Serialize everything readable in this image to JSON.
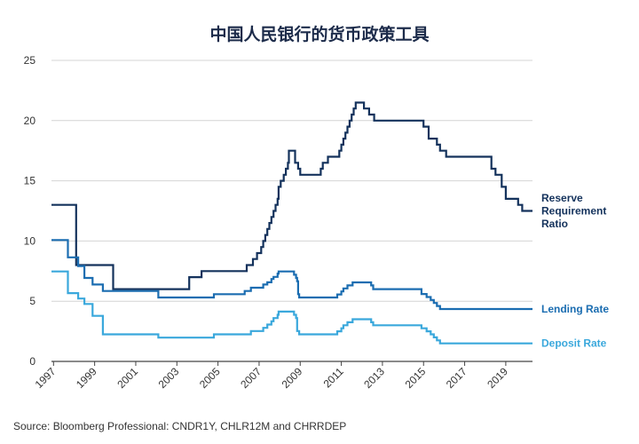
{
  "chart_data": {
    "type": "line",
    "title": "中国人民银行的货币政策工具",
    "source": "Source: Bloomberg Professional: CNDR1Y, CHLR12M and CHRRDEP",
    "xlim": [
      1996.9,
      2020.3
    ],
    "ylim": [
      0,
      25
    ],
    "yticks": [
      0,
      5,
      10,
      15,
      20,
      25
    ],
    "xtick_labels": [
      "1997",
      "1999",
      "2001",
      "2003",
      "2005",
      "2007",
      "2009",
      "2011",
      "2013",
      "2015",
      "2017",
      "2019"
    ],
    "xtick_values": [
      1997,
      1999,
      2001,
      2003,
      2005,
      2007,
      2009,
      2011,
      2013,
      2015,
      2017,
      2019
    ],
    "grid": "horizontal",
    "legend_placement": "right, at line ends",
    "series": [
      {
        "name": "Reserve Requirement Ratio",
        "color": "#14325c",
        "points": [
          [
            1996.9,
            13
          ],
          [
            1998.1,
            13
          ],
          [
            1998.1,
            8
          ],
          [
            1999.9,
            8
          ],
          [
            1999.9,
            6
          ],
          [
            2003.6,
            6
          ],
          [
            2003.6,
            7
          ],
          [
            2004.2,
            7
          ],
          [
            2004.2,
            7.5
          ],
          [
            2006.4,
            7.5
          ],
          [
            2006.4,
            8
          ],
          [
            2006.7,
            8
          ],
          [
            2006.7,
            8.5
          ],
          [
            2006.9,
            8.5
          ],
          [
            2006.9,
            9
          ],
          [
            2007.1,
            9
          ],
          [
            2007.1,
            9.5
          ],
          [
            2007.2,
            9.5
          ],
          [
            2007.2,
            10
          ],
          [
            2007.3,
            10
          ],
          [
            2007.3,
            10.5
          ],
          [
            2007.4,
            10.5
          ],
          [
            2007.4,
            11
          ],
          [
            2007.5,
            11
          ],
          [
            2007.5,
            11.5
          ],
          [
            2007.6,
            11.5
          ],
          [
            2007.6,
            12
          ],
          [
            2007.7,
            12
          ],
          [
            2007.7,
            12.5
          ],
          [
            2007.8,
            12.5
          ],
          [
            2007.8,
            13
          ],
          [
            2007.9,
            13
          ],
          [
            2007.9,
            13.5
          ],
          [
            2007.95,
            13.5
          ],
          [
            2007.95,
            14.5
          ],
          [
            2008.05,
            14.5
          ],
          [
            2008.05,
            15
          ],
          [
            2008.2,
            15
          ],
          [
            2008.2,
            15.5
          ],
          [
            2008.3,
            15.5
          ],
          [
            2008.3,
            16
          ],
          [
            2008.4,
            16
          ],
          [
            2008.4,
            16.5
          ],
          [
            2008.45,
            16.5
          ],
          [
            2008.45,
            17.5
          ],
          [
            2008.75,
            17.5
          ],
          [
            2008.75,
            16.5
          ],
          [
            2008.9,
            16.5
          ],
          [
            2008.9,
            16
          ],
          [
            2009.0,
            16
          ],
          [
            2009.0,
            15.5
          ],
          [
            2010.0,
            15.5
          ],
          [
            2010.0,
            16
          ],
          [
            2010.1,
            16
          ],
          [
            2010.1,
            16.5
          ],
          [
            2010.35,
            16.5
          ],
          [
            2010.35,
            17
          ],
          [
            2010.9,
            17
          ],
          [
            2010.9,
            17.5
          ],
          [
            2011.0,
            17.5
          ],
          [
            2011.0,
            18
          ],
          [
            2011.1,
            18
          ],
          [
            2011.1,
            18.5
          ],
          [
            2011.2,
            18.5
          ],
          [
            2011.2,
            19
          ],
          [
            2011.3,
            19
          ],
          [
            2011.3,
            19.5
          ],
          [
            2011.4,
            19.5
          ],
          [
            2011.4,
            20
          ],
          [
            2011.5,
            20
          ],
          [
            2011.5,
            20.5
          ],
          [
            2011.6,
            20.5
          ],
          [
            2011.6,
            21
          ],
          [
            2011.7,
            21
          ],
          [
            2011.7,
            21.5
          ],
          [
            2012.1,
            21.5
          ],
          [
            2012.1,
            21
          ],
          [
            2012.35,
            21
          ],
          [
            2012.35,
            20.5
          ],
          [
            2012.6,
            20.5
          ],
          [
            2012.6,
            20
          ],
          [
            2015.0,
            20
          ],
          [
            2015.0,
            19.5
          ],
          [
            2015.25,
            19.5
          ],
          [
            2015.25,
            18.5
          ],
          [
            2015.65,
            18.5
          ],
          [
            2015.65,
            18
          ],
          [
            2015.8,
            18
          ],
          [
            2015.8,
            17.5
          ],
          [
            2016.1,
            17.5
          ],
          [
            2016.1,
            17
          ],
          [
            2018.3,
            17
          ],
          [
            2018.3,
            16
          ],
          [
            2018.5,
            16
          ],
          [
            2018.5,
            15.5
          ],
          [
            2018.8,
            15.5
          ],
          [
            2018.8,
            14.5
          ],
          [
            2019.0,
            14.5
          ],
          [
            2019.0,
            13.5
          ],
          [
            2019.6,
            13.5
          ],
          [
            2019.6,
            13
          ],
          [
            2019.8,
            13
          ],
          [
            2019.8,
            12.5
          ],
          [
            2020.3,
            12.5
          ]
        ]
      },
      {
        "name": "Lending Rate",
        "color": "#1b6db1",
        "points": [
          [
            1996.9,
            10.08
          ],
          [
            1997.7,
            10.08
          ],
          [
            1997.7,
            8.64
          ],
          [
            1998.2,
            8.64
          ],
          [
            1998.2,
            7.92
          ],
          [
            1998.5,
            7.92
          ],
          [
            1998.5,
            6.93
          ],
          [
            1998.9,
            6.93
          ],
          [
            1998.9,
            6.39
          ],
          [
            1999.4,
            6.39
          ],
          [
            1999.4,
            5.85
          ],
          [
            2002.1,
            5.85
          ],
          [
            2002.1,
            5.31
          ],
          [
            2004.8,
            5.31
          ],
          [
            2004.8,
            5.58
          ],
          [
            2006.3,
            5.58
          ],
          [
            2006.3,
            5.85
          ],
          [
            2006.6,
            5.85
          ],
          [
            2006.6,
            6.12
          ],
          [
            2007.2,
            6.12
          ],
          [
            2007.2,
            6.39
          ],
          [
            2007.4,
            6.39
          ],
          [
            2007.4,
            6.57
          ],
          [
            2007.6,
            6.57
          ],
          [
            2007.6,
            6.84
          ],
          [
            2007.7,
            6.84
          ],
          [
            2007.7,
            7.02
          ],
          [
            2007.9,
            7.02
          ],
          [
            2007.9,
            7.29
          ],
          [
            2007.95,
            7.29
          ],
          [
            2007.95,
            7.47
          ],
          [
            2008.7,
            7.47
          ],
          [
            2008.7,
            7.2
          ],
          [
            2008.8,
            7.2
          ],
          [
            2008.8,
            6.93
          ],
          [
            2008.85,
            6.93
          ],
          [
            2008.85,
            6.66
          ],
          [
            2008.9,
            6.66
          ],
          [
            2008.9,
            5.58
          ],
          [
            2008.95,
            5.58
          ],
          [
            2008.95,
            5.31
          ],
          [
            2010.8,
            5.31
          ],
          [
            2010.8,
            5.56
          ],
          [
            2011.0,
            5.56
          ],
          [
            2011.0,
            5.81
          ],
          [
            2011.1,
            5.81
          ],
          [
            2011.1,
            6.06
          ],
          [
            2011.3,
            6.06
          ],
          [
            2011.3,
            6.31
          ],
          [
            2011.55,
            6.31
          ],
          [
            2011.55,
            6.56
          ],
          [
            2012.45,
            6.56
          ],
          [
            2012.45,
            6.31
          ],
          [
            2012.55,
            6.31
          ],
          [
            2012.55,
            6.0
          ],
          [
            2014.9,
            6.0
          ],
          [
            2014.9,
            5.6
          ],
          [
            2015.15,
            5.6
          ],
          [
            2015.15,
            5.35
          ],
          [
            2015.35,
            5.35
          ],
          [
            2015.35,
            5.1
          ],
          [
            2015.5,
            5.1
          ],
          [
            2015.5,
            4.85
          ],
          [
            2015.65,
            4.85
          ],
          [
            2015.65,
            4.6
          ],
          [
            2015.8,
            4.6
          ],
          [
            2015.8,
            4.35
          ],
          [
            2020.3,
            4.35
          ]
        ]
      },
      {
        "name": "Deposit Rate",
        "color": "#3aa8dc",
        "points": [
          [
            1996.9,
            7.47
          ],
          [
            1997.7,
            7.47
          ],
          [
            1997.7,
            5.67
          ],
          [
            1998.2,
            5.67
          ],
          [
            1998.2,
            5.22
          ],
          [
            1998.5,
            5.22
          ],
          [
            1998.5,
            4.77
          ],
          [
            1998.9,
            4.77
          ],
          [
            1998.9,
            3.78
          ],
          [
            1999.4,
            3.78
          ],
          [
            1999.4,
            2.25
          ],
          [
            2002.1,
            2.25
          ],
          [
            2002.1,
            1.98
          ],
          [
            2004.8,
            1.98
          ],
          [
            2004.8,
            2.25
          ],
          [
            2006.6,
            2.25
          ],
          [
            2006.6,
            2.52
          ],
          [
            2007.2,
            2.52
          ],
          [
            2007.2,
            2.79
          ],
          [
            2007.4,
            2.79
          ],
          [
            2007.4,
            3.06
          ],
          [
            2007.6,
            3.06
          ],
          [
            2007.6,
            3.33
          ],
          [
            2007.7,
            3.33
          ],
          [
            2007.7,
            3.6
          ],
          [
            2007.9,
            3.6
          ],
          [
            2007.9,
            3.87
          ],
          [
            2007.95,
            3.87
          ],
          [
            2007.95,
            4.14
          ],
          [
            2008.7,
            4.14
          ],
          [
            2008.7,
            3.87
          ],
          [
            2008.8,
            3.87
          ],
          [
            2008.8,
            3.6
          ],
          [
            2008.85,
            3.6
          ],
          [
            2008.85,
            2.52
          ],
          [
            2008.95,
            2.52
          ],
          [
            2008.95,
            2.25
          ],
          [
            2010.8,
            2.25
          ],
          [
            2010.8,
            2.5
          ],
          [
            2011.0,
            2.5
          ],
          [
            2011.0,
            2.75
          ],
          [
            2011.1,
            2.75
          ],
          [
            2011.1,
            3.0
          ],
          [
            2011.3,
            3.0
          ],
          [
            2011.3,
            3.25
          ],
          [
            2011.55,
            3.25
          ],
          [
            2011.55,
            3.5
          ],
          [
            2012.45,
            3.5
          ],
          [
            2012.45,
            3.25
          ],
          [
            2012.55,
            3.25
          ],
          [
            2012.55,
            3.0
          ],
          [
            2014.9,
            3.0
          ],
          [
            2014.9,
            2.75
          ],
          [
            2015.15,
            2.75
          ],
          [
            2015.15,
            2.5
          ],
          [
            2015.35,
            2.5
          ],
          [
            2015.35,
            2.25
          ],
          [
            2015.5,
            2.25
          ],
          [
            2015.5,
            2.0
          ],
          [
            2015.65,
            2.0
          ],
          [
            2015.65,
            1.75
          ],
          [
            2015.8,
            1.75
          ],
          [
            2015.8,
            1.5
          ],
          [
            2020.3,
            1.5
          ]
        ]
      }
    ],
    "legend": [
      {
        "lines": [
          "Reserve",
          "Requirement",
          "Ratio"
        ],
        "color": "#14325c"
      },
      {
        "lines": [
          "Lending Rate"
        ],
        "color": "#1b6db1"
      },
      {
        "lines": [
          "Deposit Rate"
        ],
        "color": "#3aa8dc"
      }
    ]
  }
}
